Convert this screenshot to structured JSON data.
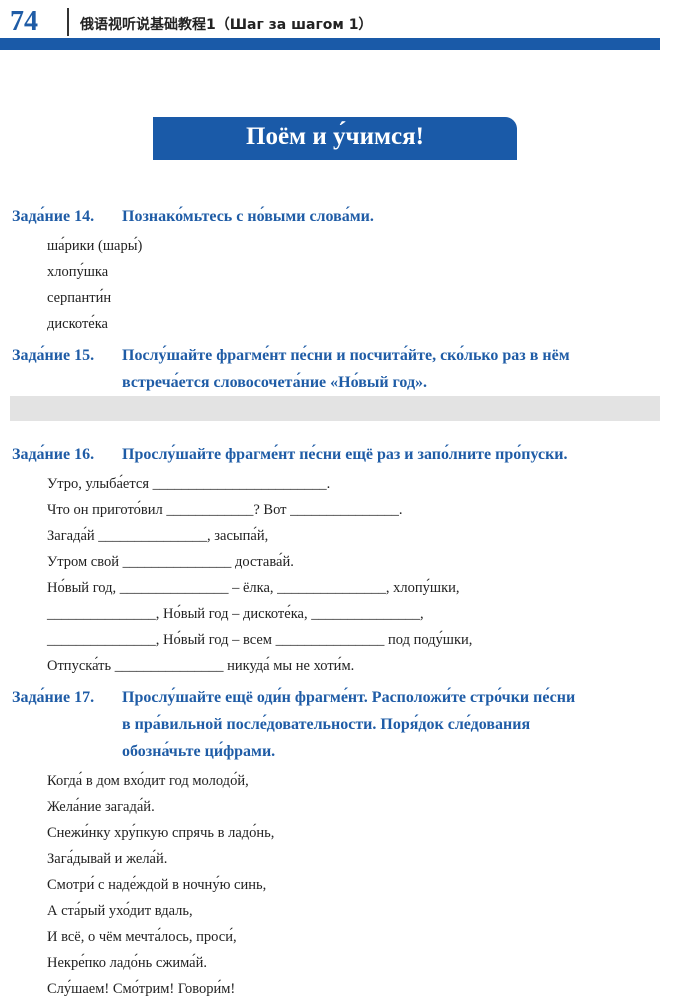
{
  "header": {
    "page_number": "74",
    "title": "俄语视听说基础教程1（Шаг за шагом 1）"
  },
  "banner": "Поём и у́чимся!",
  "tasks": [
    {
      "label": "Зада́ние 14.",
      "instruction": [
        "Познако́мьтесь с но́выми слова́ми."
      ],
      "items": [
        "ша́рики (шары́)",
        "хлопу́шка",
        "серпанти́н",
        "дискоте́ка"
      ]
    },
    {
      "label": "Зада́ние 15.",
      "instruction": [
        "Послу́шайте фрагме́нт пе́сни и посчита́йте, ско́лько раз в нём",
        "встреча́ется словосочета́ние «Но́вый год»."
      ]
    },
    {
      "label": "Зада́ние 16.",
      "instruction": [
        "Прослу́шайте фрагме́нт пе́сни ещё раз и запо́лните про́пуски."
      ],
      "items": [
        "Утро, улыба́ется ________________________.",
        "Что он пригото́вил ____________? Вот _______________.",
        "Загада́й _______________, засыпа́й,",
        "Утром свой _______________ достава́й.",
        "Но́вый год, _______________ – ёлка, _______________, хлопу́шки,",
        "_______________, Но́вый год – дискоте́ка, _______________,",
        "_______________, Но́вый год – всем _______________ под поду́шки,",
        "Отпуска́ть _______________ никуда́ мы не хоти́м."
      ]
    },
    {
      "label": "Зада́ние 17.",
      "instruction": [
        "Прослу́шайте ещё оди́н фрагме́нт. Расположи́те стро́чки пе́сни",
        "в пра́вильной после́довательности. Поря́док сле́дования",
        "обозна́чьте ци́фрами."
      ],
      "items": [
        "Когда́ в дом вхо́дит год молодо́й,",
        "Жела́ние загада́й.",
        "Снежи́нку хру́пкую спрячь в ладо́нь,",
        "Зага́дывай и жела́й.",
        "Смотри́ с наде́ждой в ночну́ю синь,",
        "А ста́рый ухо́дит вдаль,",
        "И всё, о чём мечта́лось, проси́,",
        "Некре́пко ладо́нь сжима́й.",
        "Слу́шаем! Смо́трим! Говори́м!"
      ]
    }
  ]
}
